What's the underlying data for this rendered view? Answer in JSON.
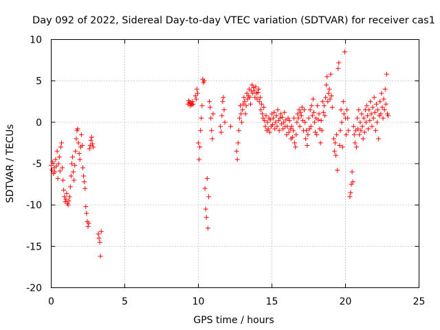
{
  "chart_data": {
    "type": "scatter",
    "title": "Day 092 of 2022, Sidereal Day-to-day VTEC variation (SDTVAR) for receiver cas1",
    "xlabel": "GPS time / hours",
    "ylabel": "SDTVAR / TECUs",
    "xlim": [
      0,
      25
    ],
    "ylim": [
      -20,
      10
    ],
    "xticks": [
      0,
      5,
      10,
      15,
      20,
      25
    ],
    "yticks": [
      -20,
      -15,
      -10,
      -5,
      0,
      5,
      10
    ],
    "xtick_labels": [
      "0",
      "5",
      "10",
      "15",
      "20",
      "25"
    ],
    "ytick_labels": [
      "-20",
      "-15",
      "-10",
      "-5",
      "0",
      "5",
      "10"
    ],
    "grid": true,
    "marker": "+",
    "color": "#ff0000",
    "series": [
      {
        "name": "cas1",
        "points": [
          [
            0.0,
            -5.2
          ],
          [
            0.05,
            -5.8
          ],
          [
            0.1,
            -4.8
          ],
          [
            0.15,
            -6.2
          ],
          [
            0.2,
            -5.5
          ],
          [
            0.25,
            -6.0
          ],
          [
            0.3,
            -4.5
          ],
          [
            0.35,
            -5.3
          ],
          [
            0.4,
            -3.5
          ],
          [
            0.45,
            -6.8
          ],
          [
            0.5,
            -5.0
          ],
          [
            0.55,
            -4.2
          ],
          [
            0.6,
            -5.9
          ],
          [
            0.65,
            -3.0
          ],
          [
            0.7,
            -2.5
          ],
          [
            0.75,
            -5.5
          ],
          [
            0.8,
            -7.0
          ],
          [
            0.85,
            -8.2
          ],
          [
            0.9,
            -9.0
          ],
          [
            0.95,
            -9.6
          ],
          [
            1.0,
            -9.3
          ],
          [
            1.05,
            -8.6
          ],
          [
            1.1,
            -9.8
          ],
          [
            1.15,
            -10.0
          ],
          [
            1.2,
            -9.5
          ],
          [
            1.25,
            -9.0
          ],
          [
            1.3,
            -7.8
          ],
          [
            1.35,
            -6.5
          ],
          [
            1.4,
            -5.0
          ],
          [
            1.45,
            -4.2
          ],
          [
            1.5,
            -6.0
          ],
          [
            1.55,
            -7.0
          ],
          [
            1.6,
            -5.2
          ],
          [
            1.65,
            -3.5
          ],
          [
            1.7,
            -2.0
          ],
          [
            1.75,
            -1.0
          ],
          [
            1.8,
            -0.8
          ],
          [
            1.85,
            -2.5
          ],
          [
            1.9,
            -3.8
          ],
          [
            1.95,
            -4.5
          ],
          [
            2.0,
            -3.0
          ],
          [
            2.05,
            -1.5
          ],
          [
            2.1,
            -2.8
          ],
          [
            2.15,
            -5.5
          ],
          [
            2.2,
            -6.5
          ],
          [
            2.25,
            -7.2
          ],
          [
            2.3,
            -8.0
          ],
          [
            2.35,
            -10.2
          ],
          [
            2.4,
            -11.0
          ],
          [
            2.45,
            -12.0
          ],
          [
            2.5,
            -12.6
          ],
          [
            2.55,
            -12.2
          ],
          [
            2.6,
            -3.2
          ],
          [
            2.65,
            -2.8
          ],
          [
            2.7,
            -2.2
          ],
          [
            2.75,
            -1.8
          ],
          [
            2.8,
            -2.6
          ],
          [
            2.85,
            -3.0
          ],
          [
            3.2,
            -13.5
          ],
          [
            3.25,
            -14.0
          ],
          [
            3.3,
            -14.5
          ],
          [
            3.35,
            -16.2
          ],
          [
            3.4,
            -13.2
          ],
          [
            9.3,
            2.2
          ],
          [
            9.35,
            2.6
          ],
          [
            9.4,
            2.4
          ],
          [
            9.45,
            2.0
          ],
          [
            9.5,
            2.3
          ],
          [
            9.55,
            2.1
          ],
          [
            9.6,
            2.5
          ],
          [
            9.65,
            2.2
          ],
          [
            9.8,
            3.2
          ],
          [
            9.85,
            2.8
          ],
          [
            9.9,
            4.0
          ],
          [
            9.95,
            3.5
          ],
          [
            10.0,
            -2.5
          ],
          [
            10.05,
            -4.5
          ],
          [
            10.1,
            -3.0
          ],
          [
            10.15,
            -1.0
          ],
          [
            10.2,
            0.5
          ],
          [
            10.25,
            2.0
          ],
          [
            10.3,
            5.2
          ],
          [
            10.35,
            4.8
          ],
          [
            10.4,
            5.0
          ],
          [
            10.45,
            -8.0
          ],
          [
            10.5,
            -10.5
          ],
          [
            10.55,
            -11.5
          ],
          [
            10.6,
            -6.8
          ],
          [
            10.65,
            -12.8
          ],
          [
            10.7,
            -9.0
          ],
          [
            10.75,
            2.5
          ],
          [
            10.8,
            1.8
          ],
          [
            10.85,
            0.5
          ],
          [
            10.9,
            -1.0
          ],
          [
            10.95,
            -2.0
          ],
          [
            11.0,
            1.0
          ],
          [
            11.5,
            -0.5
          ],
          [
            11.55,
            -1.2
          ],
          [
            11.6,
            0.8
          ],
          [
            11.65,
            2.5
          ],
          [
            11.7,
            3.0
          ],
          [
            11.75,
            1.5
          ],
          [
            11.8,
            0.0
          ],
          [
            12.2,
            -0.5
          ],
          [
            12.6,
            -3.5
          ],
          [
            12.65,
            -4.5
          ],
          [
            12.7,
            -2.5
          ],
          [
            12.75,
            -1.0
          ],
          [
            12.8,
            0.5
          ],
          [
            12.85,
            2.0
          ],
          [
            12.9,
            1.0
          ],
          [
            12.95,
            0.0
          ],
          [
            13.0,
            1.5
          ],
          [
            13.05,
            2.2
          ],
          [
            13.1,
            3.0
          ],
          [
            13.15,
            2.5
          ],
          [
            13.2,
            1.0
          ],
          [
            13.25,
            2.0
          ],
          [
            13.3,
            3.5
          ],
          [
            13.35,
            2.8
          ],
          [
            13.4,
            3.2
          ],
          [
            13.45,
            4.0
          ],
          [
            13.5,
            3.0
          ],
          [
            13.55,
            2.2
          ],
          [
            13.6,
            3.8
          ],
          [
            13.65,
            4.5
          ],
          [
            13.7,
            3.5
          ],
          [
            13.75,
            4.2
          ],
          [
            13.8,
            3.8
          ],
          [
            13.85,
            3.0
          ],
          [
            13.9,
            4.3
          ],
          [
            13.95,
            3.5
          ],
          [
            14.0,
            2.8
          ],
          [
            14.05,
            3.6
          ],
          [
            14.1,
            4.0
          ],
          [
            14.15,
            2.5
          ],
          [
            14.2,
            3.0
          ],
          [
            14.25,
            1.5
          ],
          [
            14.3,
            2.2
          ],
          [
            14.35,
            1.0
          ],
          [
            14.4,
            0.5
          ],
          [
            14.45,
            1.8
          ],
          [
            14.5,
            0.2
          ],
          [
            14.55,
            -0.5
          ],
          [
            14.6,
            0.8
          ],
          [
            14.65,
            -1.0
          ],
          [
            14.7,
            0.0
          ],
          [
            14.75,
            -0.8
          ],
          [
            14.8,
            0.5
          ],
          [
            14.85,
            -1.2
          ],
          [
            14.9,
            0.3
          ],
          [
            14.95,
            -0.5
          ],
          [
            15.0,
            1.0
          ],
          [
            15.05,
            -0.3
          ],
          [
            15.1,
            0.5
          ],
          [
            15.15,
            1.2
          ],
          [
            15.2,
            -0.8
          ],
          [
            15.25,
            0.0
          ],
          [
            15.3,
            0.8
          ],
          [
            15.35,
            -0.5
          ],
          [
            15.4,
            1.5
          ],
          [
            15.45,
            0.2
          ],
          [
            15.5,
            -1.0
          ],
          [
            15.55,
            0.5
          ],
          [
            15.6,
            1.0
          ],
          [
            15.65,
            -0.2
          ],
          [
            15.7,
            0.6
          ],
          [
            15.75,
            -0.8
          ],
          [
            15.8,
            0.0
          ],
          [
            15.85,
            1.2
          ],
          [
            15.9,
            -0.5
          ],
          [
            15.95,
            0.3
          ],
          [
            16.0,
            -1.5
          ],
          [
            16.05,
            -0.5
          ],
          [
            16.1,
            0.5
          ],
          [
            16.15,
            -1.2
          ],
          [
            16.2,
            0.2
          ],
          [
            16.25,
            -0.8
          ],
          [
            16.3,
            -2.0
          ],
          [
            16.35,
            -0.5
          ],
          [
            16.4,
            -1.8
          ],
          [
            16.45,
            -1.0
          ],
          [
            16.5,
            0.5
          ],
          [
            16.55,
            -2.5
          ],
          [
            16.6,
            -3.0
          ],
          [
            16.65,
            -1.5
          ],
          [
            16.7,
            0.0
          ],
          [
            16.75,
            1.0
          ],
          [
            16.8,
            0.5
          ],
          [
            16.85,
            1.5
          ],
          [
            16.9,
            -0.5
          ],
          [
            16.95,
            1.2
          ],
          [
            17.0,
            0.8
          ],
          [
            17.05,
            1.8
          ],
          [
            17.1,
            0.2
          ],
          [
            17.15,
            -1.0
          ],
          [
            17.2,
            1.5
          ],
          [
            17.25,
            0.0
          ],
          [
            17.3,
            -2.0
          ],
          [
            17.35,
            -1.0
          ],
          [
            17.4,
            -2.8
          ],
          [
            17.45,
            -1.5
          ],
          [
            17.5,
            0.5
          ],
          [
            17.55,
            -0.8
          ],
          [
            17.6,
            1.5
          ],
          [
            17.65,
            -0.5
          ],
          [
            17.7,
            2.0
          ],
          [
            17.75,
            0.8
          ],
          [
            17.8,
            2.8
          ],
          [
            17.85,
            1.2
          ],
          [
            17.9,
            0.0
          ],
          [
            17.95,
            -1.2
          ],
          [
            18.0,
            0.5
          ],
          [
            18.05,
            -1.5
          ],
          [
            18.1,
            2.0
          ],
          [
            18.15,
            0.3
          ],
          [
            18.2,
            1.0
          ],
          [
            18.25,
            -0.8
          ],
          [
            18.3,
            -2.5
          ],
          [
            18.35,
            0.2
          ],
          [
            18.4,
            -1.0
          ],
          [
            18.45,
            2.5
          ],
          [
            18.5,
            1.2
          ],
          [
            18.55,
            2.0
          ],
          [
            18.6,
            0.8
          ],
          [
            18.65,
            3.0
          ],
          [
            18.7,
            4.5
          ],
          [
            18.75,
            5.5
          ],
          [
            18.8,
            2.5
          ],
          [
            18.85,
            3.5
          ],
          [
            18.9,
            4.0
          ],
          [
            18.95,
            2.8
          ],
          [
            19.0,
            5.8
          ],
          [
            19.05,
            3.2
          ],
          [
            19.1,
            1.8
          ],
          [
            19.2,
            -2.0
          ],
          [
            19.25,
            -3.5
          ],
          [
            19.3,
            -2.5
          ],
          [
            19.35,
            -4.0
          ],
          [
            19.4,
            -1.5
          ],
          [
            19.45,
            -5.8
          ],
          [
            19.5,
            6.5
          ],
          [
            19.55,
            7.2
          ],
          [
            19.6,
            -2.8
          ],
          [
            19.65,
            -1.0
          ],
          [
            19.7,
            1.5
          ],
          [
            19.75,
            0.0
          ],
          [
            19.8,
            -3.0
          ],
          [
            19.85,
            2.5
          ],
          [
            19.9,
            1.0
          ],
          [
            19.95,
            8.5
          ],
          [
            20.0,
            0.5
          ],
          [
            20.05,
            -1.5
          ],
          [
            20.1,
            1.5
          ],
          [
            20.15,
            0.5
          ],
          [
            20.2,
            -1.0
          ],
          [
            20.3,
            -9.0
          ],
          [
            20.35,
            -8.5
          ],
          [
            20.4,
            -7.5
          ],
          [
            20.45,
            -6.0
          ],
          [
            20.5,
            -7.2
          ],
          [
            20.55,
            -0.5
          ],
          [
            20.6,
            -1.5
          ],
          [
            20.65,
            -2.5
          ],
          [
            20.7,
            -1.0
          ],
          [
            20.75,
            -3.0
          ],
          [
            20.8,
            0.5
          ],
          [
            20.85,
            -0.8
          ],
          [
            20.9,
            1.5
          ],
          [
            20.95,
            -1.5
          ],
          [
            21.0,
            0.0
          ],
          [
            21.05,
            -1.0
          ],
          [
            21.1,
            1.0
          ],
          [
            21.15,
            -0.5
          ],
          [
            21.2,
            -2.0
          ],
          [
            21.25,
            0.5
          ],
          [
            21.3,
            -1.2
          ],
          [
            21.35,
            1.5
          ],
          [
            21.4,
            0.0
          ],
          [
            21.45,
            2.0
          ],
          [
            21.5,
            0.8
          ],
          [
            21.55,
            -0.8
          ],
          [
            21.6,
            1.5
          ],
          [
            21.65,
            0.2
          ],
          [
            21.7,
            2.5
          ],
          [
            21.75,
            1.0
          ],
          [
            21.8,
            -0.5
          ],
          [
            21.85,
            1.8
          ],
          [
            21.9,
            0.5
          ],
          [
            21.95,
            3.0
          ],
          [
            22.0,
            1.2
          ],
          [
            22.05,
            -1.0
          ],
          [
            22.1,
            2.2
          ],
          [
            22.15,
            0.0
          ],
          [
            22.2,
            1.5
          ],
          [
            22.25,
            -2.0
          ],
          [
            22.3,
            0.8
          ],
          [
            22.35,
            2.5
          ],
          [
            22.4,
            1.0
          ],
          [
            22.45,
            3.5
          ],
          [
            22.5,
            1.8
          ],
          [
            22.55,
            0.5
          ],
          [
            22.6,
            2.8
          ],
          [
            22.65,
            1.5
          ],
          [
            22.7,
            4.0
          ],
          [
            22.75,
            2.2
          ],
          [
            22.8,
            5.8
          ],
          [
            22.85,
            1.0
          ],
          [
            22.9,
            0.8
          ]
        ]
      }
    ]
  }
}
